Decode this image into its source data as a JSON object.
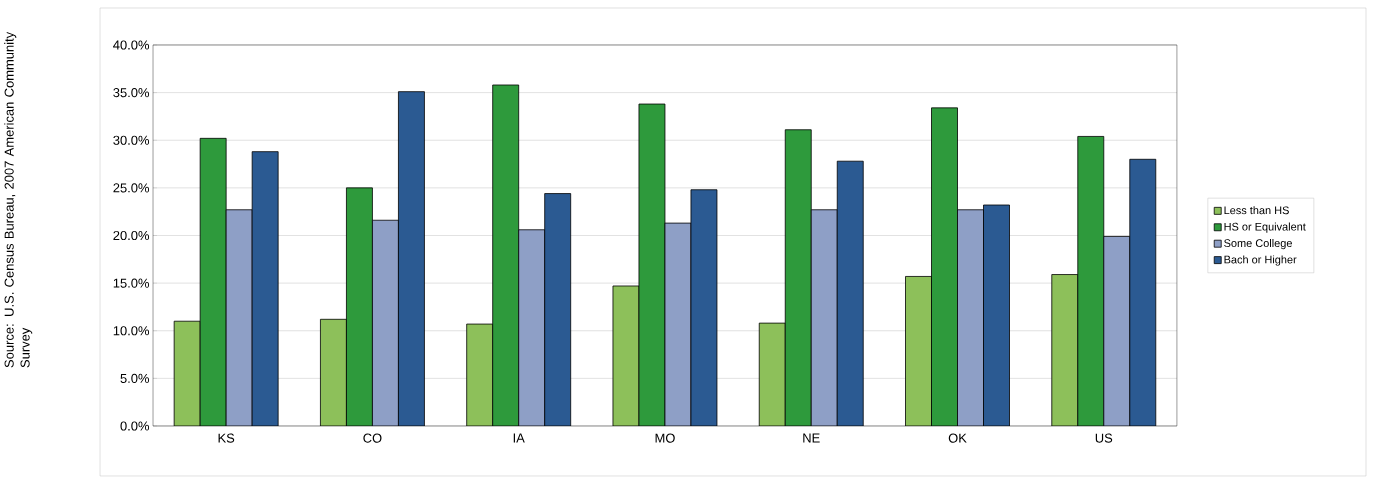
{
  "chart_data": {
    "type": "bar",
    "categories": [
      "KS",
      "CO",
      "IA",
      "MO",
      "NE",
      "OK",
      "US"
    ],
    "series": [
      {
        "name": "Less than HS",
        "color": "#8dc05a",
        "values": [
          11.0,
          11.2,
          10.7,
          14.7,
          10.8,
          15.7,
          15.9
        ]
      },
      {
        "name": "HS or Equivalent",
        "color": "#2e9a3c",
        "values": [
          30.2,
          25.0,
          35.8,
          33.8,
          31.1,
          33.4,
          30.4
        ]
      },
      {
        "name": "Some College",
        "color": "#8e9fc6",
        "values": [
          22.7,
          21.6,
          20.6,
          21.3,
          22.7,
          22.7,
          19.9
        ]
      },
      {
        "name": "Bach or Higher",
        "color": "#2b5a92",
        "values": [
          28.8,
          35.1,
          24.4,
          24.8,
          27.8,
          23.2,
          28.0
        ]
      }
    ],
    "ylim": [
      0,
      40
    ],
    "yticks": [
      {
        "value": 0,
        "label": "0.0%"
      },
      {
        "value": 5,
        "label": "5.0%"
      },
      {
        "value": 10,
        "label": "10.0%"
      },
      {
        "value": 15,
        "label": "15.0%"
      },
      {
        "value": 20,
        "label": "20.0%"
      },
      {
        "value": 25,
        "label": "25.0%"
      },
      {
        "value": 30,
        "label": "30.0%"
      },
      {
        "value": 35,
        "label": "35.0%"
      },
      {
        "value": 40,
        "label": "40.0%"
      }
    ],
    "grid": "y",
    "legend": "right",
    "annotations": [
      "Source: U.S. Census Bureau, 2007 American Community Survey"
    ]
  }
}
